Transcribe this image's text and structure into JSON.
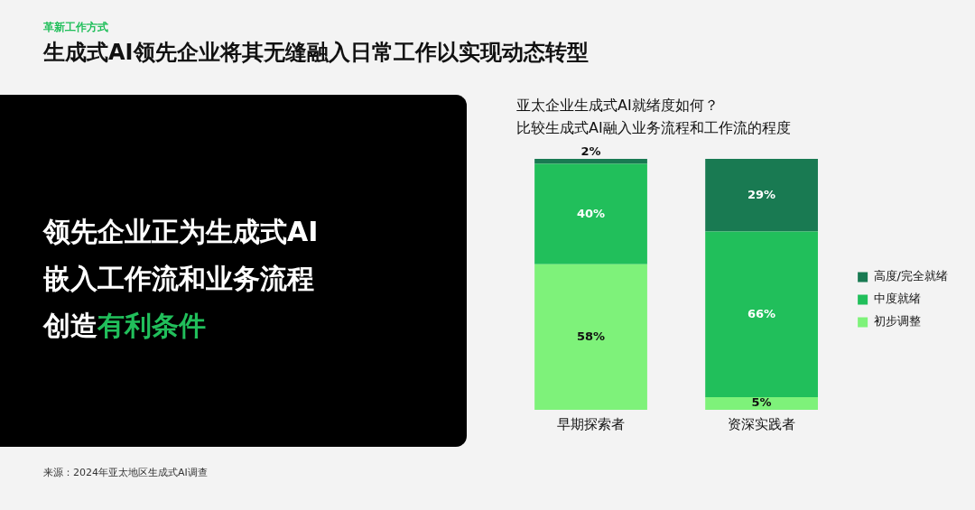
{
  "chart_data": [
    {
      "type": "other",
      "subtitle": "革新工作方式",
      "title": "生成式AI领先企业将其无缝融入日常工作以实现动态转型",
      "annotations": [
        "领先企业正为生成式AI",
        "嵌入工作流和业务流程",
        "创造",
        "有利条件",
        "来源：2024年亚太地区生成式AI调查"
      ]
    },
    {
      "type": "bar",
      "title": "亚太企业生成式AI就绪度如何？",
      "subtitle": "比较生成式AI融入业务流程和工作流的程度",
      "categories": [
        "早期探索者",
        "资深实践者"
      ],
      "stacked": true,
      "ylim": [
        0,
        100
      ],
      "tick_labels": "x",
      "grid": false,
      "legend": "right",
      "series": [
        {
          "name": "初步调整",
          "color": "#7ef27a",
          "values": [
            58,
            5
          ],
          "value_labels": [
            "58%",
            "5%"
          ]
        },
        {
          "name": "中度就绪",
          "color": "#21bf5b",
          "values": [
            40,
            66
          ],
          "value_labels": [
            "40%",
            "66%"
          ]
        },
        {
          "name": "高度/完全就绪",
          "color": "#197a52",
          "values": [
            2,
            29
          ],
          "value_labels": [
            "2%",
            "29%"
          ]
        }
      ]
    }
  ]
}
